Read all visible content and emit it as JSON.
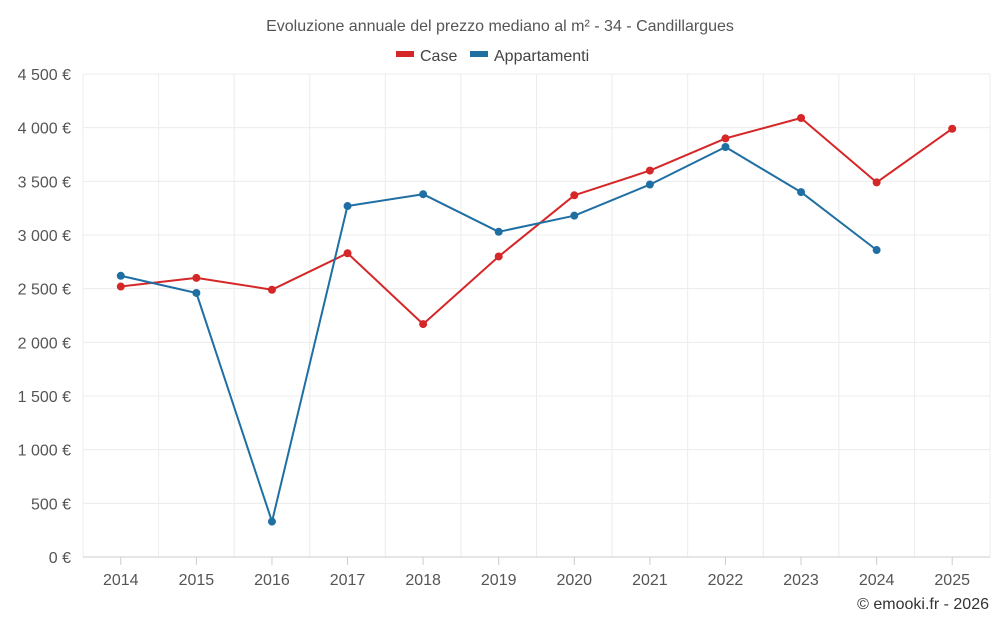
{
  "chart_data": {
    "type": "line",
    "title": "Evoluzione annuale del prezzo mediano al m² - 34 - Candillargues",
    "categories": [
      "2014",
      "2015",
      "2016",
      "2017",
      "2018",
      "2019",
      "2020",
      "2021",
      "2022",
      "2023",
      "2024",
      "2025"
    ],
    "series": [
      {
        "name": "Case",
        "color": "#d62728",
        "values": [
          2520,
          2600,
          2490,
          2830,
          2170,
          2800,
          3370,
          3600,
          3900,
          4090,
          3490,
          3990
        ]
      },
      {
        "name": "Appartamenti",
        "color": "#1f6fa3",
        "values": [
          2620,
          2460,
          330,
          3270,
          3380,
          3030,
          3180,
          3470,
          3820,
          3400,
          2860,
          null
        ]
      }
    ],
    "ylim": [
      0,
      4500
    ],
    "y_ticks": [
      0,
      500,
      1000,
      1500,
      2000,
      2500,
      3000,
      3500,
      4000,
      4500
    ],
    "y_tick_labels": [
      "0 €",
      "500 €",
      "1 000 €",
      "1 500 €",
      "2 000 €",
      "2 500 €",
      "3 000 €",
      "3 500 €",
      "4 000 €",
      "4 500 €"
    ],
    "grid": true,
    "legend_position": "top-center",
    "credit": "© emooki.fr - 2026"
  }
}
